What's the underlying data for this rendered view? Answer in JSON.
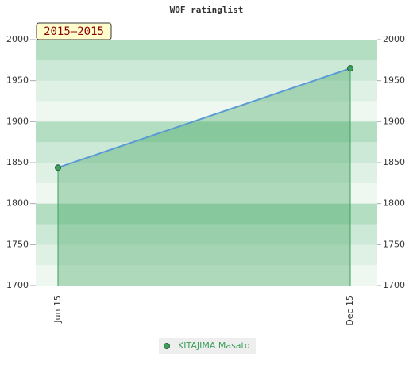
{
  "chart_data": {
    "type": "line",
    "title": "WOF ratinglist",
    "badge": "2015–2015",
    "categories": [
      "Jun 15",
      "Dec 15"
    ],
    "series": [
      {
        "name": "KITAJIMA Masato",
        "color": "#3aa05a",
        "line_color": "#5b9bd5",
        "values": [
          1844,
          1965
        ]
      }
    ],
    "ylim": [
      1700,
      2000
    ],
    "yticks": [
      1700,
      1750,
      1800,
      1850,
      1900,
      1950,
      2000
    ],
    "y2lim": [
      1700,
      2000
    ],
    "y2ticks": [
      1700,
      1750,
      1800,
      1850,
      1900,
      1950,
      2000
    ],
    "legend": "bottom"
  }
}
